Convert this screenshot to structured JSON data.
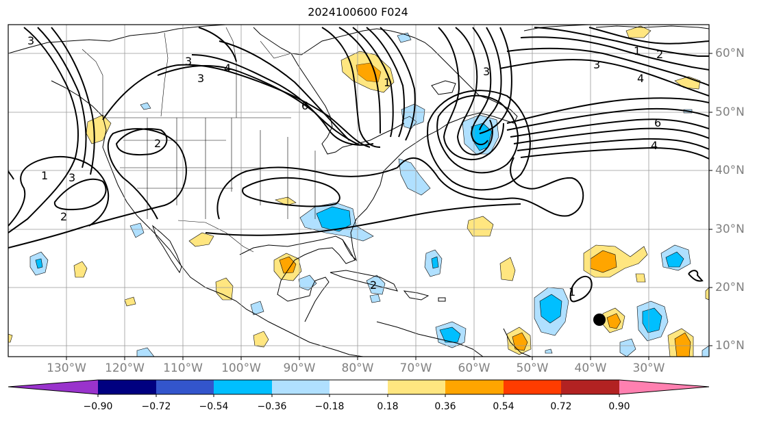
{
  "title": "2024100600 F024",
  "map": {
    "projection": "PlateCarree",
    "extent_lon": [
      -143,
      -22
    ],
    "extent_lat": [
      8,
      65
    ],
    "lon_ticks": [
      {
        "value": -130,
        "label": "130°W"
      },
      {
        "value": -120,
        "label": "120°W"
      },
      {
        "value": -110,
        "label": "110°W"
      },
      {
        "value": -100,
        "label": "100°W"
      },
      {
        "value": -90,
        "label": "90°W"
      },
      {
        "value": -80,
        "label": "80°W"
      },
      {
        "value": -70,
        "label": "70°W"
      },
      {
        "value": -60,
        "label": "60°W"
      },
      {
        "value": -50,
        "label": "50°W"
      },
      {
        "value": -40,
        "label": "40°W"
      },
      {
        "value": -30,
        "label": "30°W"
      }
    ],
    "lat_ticks": [
      {
        "value": 60,
        "label": "60°N"
      },
      {
        "value": 50,
        "label": "50°N"
      },
      {
        "value": 40,
        "label": "40°N"
      },
      {
        "value": 30,
        "label": "30°N"
      },
      {
        "value": 20,
        "label": "20°N"
      },
      {
        "value": 10,
        "label": "10°N"
      }
    ],
    "contour_labels": [
      "1",
      "2",
      "3",
      "4",
      "6"
    ],
    "marker": {
      "label": "storm-center-dot",
      "lon": -41,
      "lat": 14.5
    }
  },
  "colorbar": {
    "ticks": [
      "−0.90",
      "−0.72",
      "−0.54",
      "−0.36",
      "−0.18",
      "0.18",
      "0.36",
      "0.54",
      "0.72",
      "0.90"
    ],
    "colors": [
      "#9933cc",
      "#000080",
      "#3355cc",
      "#00bfff",
      "#b0e0ff",
      "#ffffff",
      "#ffe680",
      "#ffa500",
      "#ff3c00",
      "#b22222",
      "#ff80b0"
    ],
    "extend": "both"
  }
}
